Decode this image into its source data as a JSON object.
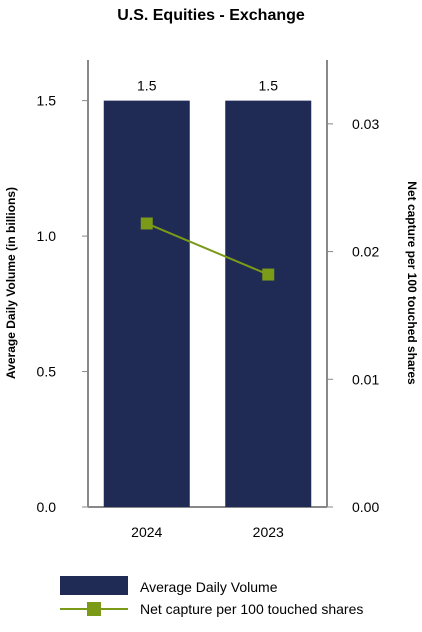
{
  "chart_data": {
    "type": "bar",
    "title": "U.S. Equities - Exchange",
    "categories": [
      "2024",
      "2023"
    ],
    "series": [
      {
        "name": "Average Daily Volume",
        "type": "bar",
        "axis": "left",
        "values": [
          1.5,
          1.5
        ],
        "data_labels": [
          "1.5",
          "1.5"
        ],
        "color": "#1f2a55"
      },
      {
        "name": "Net capture per 100 touched shares",
        "type": "line",
        "axis": "right",
        "values": [
          0.0222,
          0.0182
        ],
        "color": "#7a9a18"
      }
    ],
    "y_left": {
      "label": "Average Daily Volume (in billions)",
      "ticks": [
        "1.5",
        "1.0",
        "0.5",
        "0.0"
      ],
      "tick_values": [
        1.5,
        1.0,
        0.5,
        0.0
      ],
      "lim": [
        0.0,
        1.65
      ]
    },
    "y_right": {
      "label": "Net capture per 100 touched shares",
      "ticks": [
        "0.03",
        "0.02",
        "0.01",
        "0.00"
      ],
      "tick_values": [
        0.03,
        0.02,
        0.01,
        0.0
      ],
      "lim": [
        0.0,
        0.035
      ]
    },
    "grid": false,
    "legend": {
      "position": "bottom",
      "items": [
        {
          "label": "Average Daily Volume",
          "kind": "bar",
          "color": "#1f2a55"
        },
        {
          "label": "Net capture per 100 touched shares",
          "kind": "line-marker",
          "color": "#7a9a18"
        }
      ]
    }
  }
}
